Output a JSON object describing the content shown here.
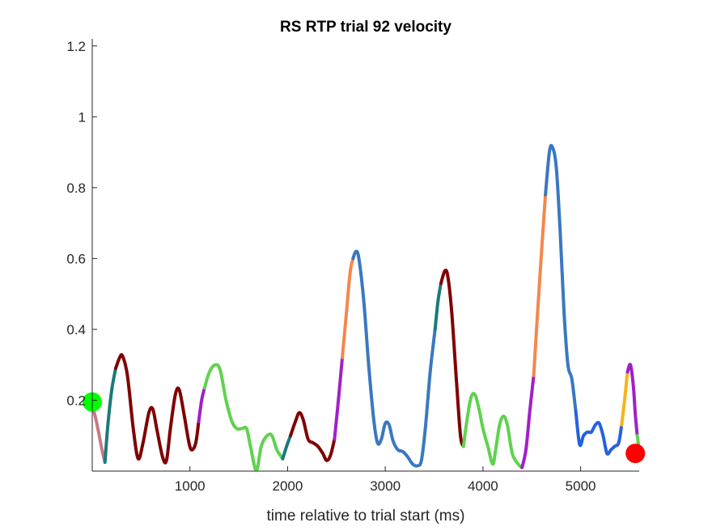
{
  "chart_data": {
    "type": "line",
    "title": "RS  RTP trial 92 velocity",
    "xlabel": "time relative to trial start (ms)",
    "ylabel": "",
    "xlim": [
      0,
      5600
    ],
    "ylim": [
      0,
      1.22
    ],
    "xticks": [
      1000,
      2000,
      3000,
      4000,
      5000
    ],
    "yticks": [
      0.2,
      0.4,
      0.6,
      0.8,
      1,
      1.2
    ],
    "ytick_labels": [
      "0.2",
      "0.4",
      "0.6",
      "0.8",
      "1",
      "1.2"
    ],
    "grid": false,
    "background": "#ffffff",
    "markers": [
      {
        "name": "start",
        "x": 0,
        "y": 0.195,
        "color": "#00ff00"
      },
      {
        "name": "end",
        "x": 5560,
        "y": 0.05,
        "color": "#ff0000"
      }
    ],
    "segments": [
      {
        "color": "#c77a85",
        "points": [
          [
            0,
            0.19
          ],
          [
            50,
            0.13
          ],
          [
            100,
            0.06
          ],
          [
            130,
            0.025
          ]
        ]
      },
      {
        "color": "#1a7a7a",
        "points": [
          [
            130,
            0.025
          ],
          [
            160,
            0.13
          ],
          [
            200,
            0.23
          ],
          [
            240,
            0.29
          ]
        ]
      },
      {
        "color": "#800000",
        "points": [
          [
            240,
            0.29
          ],
          [
            280,
            0.32
          ],
          [
            310,
            0.325
          ],
          [
            360,
            0.27
          ],
          [
            420,
            0.12
          ],
          [
            470,
            0.035
          ],
          [
            520,
            0.08
          ],
          [
            580,
            0.165
          ],
          [
            620,
            0.175
          ],
          [
            660,
            0.12
          ],
          [
            720,
            0.04
          ],
          [
            760,
            0.03
          ],
          [
            800,
            0.12
          ],
          [
            850,
            0.215
          ],
          [
            890,
            0.23
          ],
          [
            940,
            0.16
          ],
          [
            990,
            0.08
          ],
          [
            1020,
            0.06
          ],
          [
            1060,
            0.08
          ],
          [
            1090,
            0.14
          ]
        ]
      },
      {
        "color": "#a020c8",
        "points": [
          [
            1090,
            0.14
          ],
          [
            1120,
            0.2
          ],
          [
            1150,
            0.235
          ]
        ]
      },
      {
        "color": "#5fd24e",
        "points": [
          [
            1150,
            0.235
          ],
          [
            1200,
            0.28
          ],
          [
            1260,
            0.3
          ],
          [
            1310,
            0.285
          ],
          [
            1370,
            0.2
          ],
          [
            1430,
            0.14
          ],
          [
            1480,
            0.12
          ],
          [
            1530,
            0.12
          ],
          [
            1580,
            0.12
          ],
          [
            1620,
            0.07
          ],
          [
            1680,
            0.002
          ],
          [
            1730,
            0.07
          ],
          [
            1790,
            0.1
          ],
          [
            1840,
            0.1
          ],
          [
            1890,
            0.06
          ],
          [
            1950,
            0.035
          ]
        ]
      },
      {
        "color": "#1a7a7a",
        "points": [
          [
            1950,
            0.035
          ],
          [
            1990,
            0.07
          ],
          [
            2030,
            0.1
          ]
        ]
      },
      {
        "color": "#800000",
        "points": [
          [
            2030,
            0.1
          ],
          [
            2080,
            0.14
          ],
          [
            2120,
            0.165
          ],
          [
            2160,
            0.145
          ],
          [
            2210,
            0.09
          ],
          [
            2260,
            0.08
          ],
          [
            2310,
            0.07
          ],
          [
            2360,
            0.05
          ],
          [
            2400,
            0.03
          ],
          [
            2440,
            0.045
          ],
          [
            2480,
            0.09
          ]
        ]
      },
      {
        "color": "#a020c8",
        "points": [
          [
            2480,
            0.09
          ],
          [
            2520,
            0.2
          ],
          [
            2560,
            0.32
          ]
        ]
      },
      {
        "color": "#f4874c",
        "points": [
          [
            2560,
            0.32
          ],
          [
            2600,
            0.44
          ],
          [
            2640,
            0.56
          ],
          [
            2670,
            0.6
          ]
        ]
      },
      {
        "color": "#3a78c0",
        "points": [
          [
            2670,
            0.6
          ],
          [
            2700,
            0.62
          ],
          [
            2730,
            0.6
          ],
          [
            2780,
            0.48
          ],
          [
            2830,
            0.3
          ],
          [
            2880,
            0.15
          ],
          [
            2920,
            0.08
          ],
          [
            2960,
            0.09
          ],
          [
            3000,
            0.135
          ],
          [
            3040,
            0.13
          ],
          [
            3080,
            0.085
          ],
          [
            3130,
            0.06
          ],
          [
            3180,
            0.055
          ],
          [
            3230,
            0.04
          ],
          [
            3280,
            0.02
          ],
          [
            3330,
            0.015
          ],
          [
            3370,
            0.03
          ],
          [
            3410,
            0.12
          ],
          [
            3460,
            0.28
          ],
          [
            3510,
            0.4
          ]
        ]
      },
      {
        "color": "#1a7a7a",
        "points": [
          [
            3510,
            0.4
          ],
          [
            3540,
            0.48
          ],
          [
            3570,
            0.53
          ]
        ]
      },
      {
        "color": "#800000",
        "points": [
          [
            3570,
            0.53
          ],
          [
            3610,
            0.565
          ],
          [
            3640,
            0.55
          ],
          [
            3680,
            0.45
          ],
          [
            3730,
            0.25
          ],
          [
            3770,
            0.1
          ],
          [
            3800,
            0.07
          ]
        ]
      },
      {
        "color": "#5fd24e",
        "points": [
          [
            3800,
            0.07
          ],
          [
            3840,
            0.15
          ],
          [
            3880,
            0.21
          ],
          [
            3920,
            0.215
          ],
          [
            3960,
            0.175
          ],
          [
            4000,
            0.12
          ],
          [
            4050,
            0.07
          ],
          [
            4100,
            0.02
          ],
          [
            4130,
            0.06
          ],
          [
            4170,
            0.13
          ],
          [
            4210,
            0.155
          ],
          [
            4250,
            0.13
          ],
          [
            4300,
            0.05
          ],
          [
            4360,
            0.02
          ],
          [
            4400,
            0.01
          ]
        ]
      },
      {
        "color": "#a020c8",
        "points": [
          [
            4400,
            0.01
          ],
          [
            4440,
            0.06
          ],
          [
            4480,
            0.17
          ],
          [
            4520,
            0.27
          ]
        ]
      },
      {
        "color": "#f4874c",
        "points": [
          [
            4520,
            0.27
          ],
          [
            4560,
            0.45
          ],
          [
            4600,
            0.62
          ],
          [
            4640,
            0.78
          ]
        ]
      },
      {
        "color": "#3a78c0",
        "points": [
          [
            4640,
            0.78
          ],
          [
            4680,
            0.9
          ],
          [
            4710,
            0.915
          ],
          [
            4750,
            0.86
          ],
          [
            4790,
            0.68
          ],
          [
            4830,
            0.45
          ],
          [
            4870,
            0.3
          ],
          [
            4910,
            0.26
          ],
          [
            4950,
            0.17
          ]
        ]
      },
      {
        "color": "#2660e0",
        "points": [
          [
            4950,
            0.17
          ],
          [
            4990,
            0.075
          ],
          [
            5030,
            0.1
          ],
          [
            5070,
            0.11
          ],
          [
            5110,
            0.11
          ],
          [
            5150,
            0.13
          ],
          [
            5190,
            0.135
          ],
          [
            5230,
            0.1
          ],
          [
            5270,
            0.05
          ],
          [
            5310,
            0.06
          ],
          [
            5350,
            0.07
          ],
          [
            5390,
            0.08
          ],
          [
            5420,
            0.13
          ]
        ]
      },
      {
        "color": "#f5b519",
        "points": [
          [
            5420,
            0.13
          ],
          [
            5450,
            0.2
          ],
          [
            5480,
            0.28
          ]
        ]
      },
      {
        "color": "#a020c8",
        "points": [
          [
            5480,
            0.28
          ],
          [
            5510,
            0.3
          ],
          [
            5540,
            0.24
          ],
          [
            5560,
            0.16
          ],
          [
            5580,
            0.1
          ]
        ]
      },
      {
        "color": "#5fd24e",
        "points": [
          [
            5580,
            0.1
          ],
          [
            5600,
            0.06
          ]
        ]
      }
    ]
  }
}
